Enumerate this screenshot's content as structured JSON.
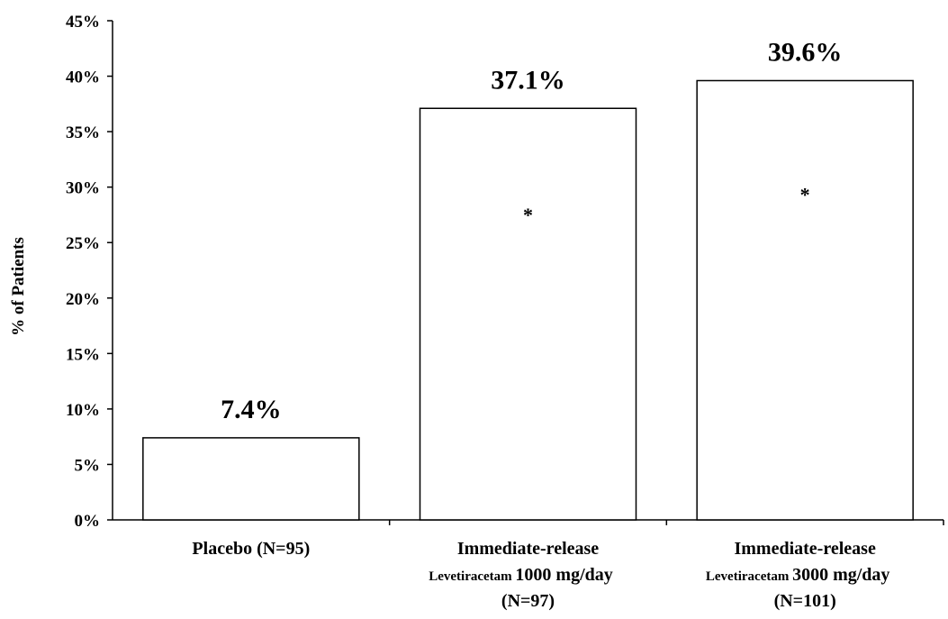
{
  "chart_data": {
    "type": "bar",
    "title": "",
    "xlabel": "",
    "ylabel": "% of Patients",
    "ylim": [
      0,
      45
    ],
    "yticks": [
      "0%",
      "5%",
      "10%",
      "15%",
      "20%",
      "25%",
      "30%",
      "35%",
      "40%",
      "45%"
    ],
    "categories": [
      [
        "Placebo (N=95)"
      ],
      [
        "Immediate-release",
        "Levetiracetam 1000 mg/day",
        "(N=97)"
      ],
      [
        "Immediate-release",
        "Levetiracetam 3000 mg/day",
        "(N=101)"
      ]
    ],
    "values": [
      7.4,
      37.1,
      39.6
    ],
    "data_labels": [
      "7.4%",
      "37.1%",
      "39.6%"
    ],
    "annotations": [
      "",
      "*",
      "*"
    ],
    "bar_color": "#ffffff",
    "bar_edge_color": "#000000",
    "grid": false,
    "legend": "none"
  }
}
